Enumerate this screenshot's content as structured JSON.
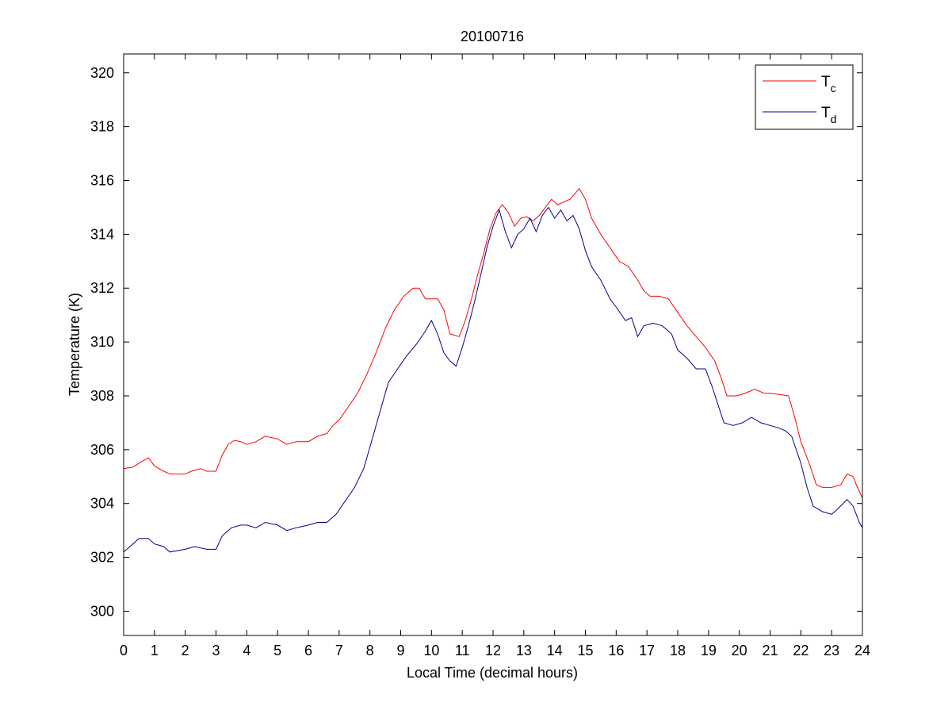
{
  "chart_data": {
    "type": "line",
    "title": "20100716",
    "xlabel": "Local Time (decimal hours)",
    "ylabel": "Temperature (K)",
    "xlim": [
      0,
      24
    ],
    "ylim": [
      299.1,
      320.7
    ],
    "xticks": [
      0,
      1,
      2,
      3,
      4,
      5,
      6,
      7,
      8,
      9,
      10,
      11,
      12,
      13,
      14,
      15,
      16,
      17,
      18,
      19,
      20,
      21,
      22,
      23,
      24
    ],
    "yticks": [
      300,
      302,
      304,
      306,
      308,
      310,
      312,
      314,
      316,
      318,
      320
    ],
    "grid": false,
    "legend_position": "top-right",
    "series": [
      {
        "name": "T",
        "subscript": "c",
        "color": "#ff0000",
        "points": [
          [
            0,
            305.3
          ],
          [
            0.3,
            305.35
          ],
          [
            0.5,
            305.5
          ],
          [
            0.8,
            305.7
          ],
          [
            1.0,
            305.4
          ],
          [
            1.3,
            305.2
          ],
          [
            1.5,
            305.1
          ],
          [
            2.0,
            305.1
          ],
          [
            2.2,
            305.2
          ],
          [
            2.5,
            305.3
          ],
          [
            2.7,
            305.2
          ],
          [
            3.0,
            305.2
          ],
          [
            3.2,
            305.8
          ],
          [
            3.4,
            306.2
          ],
          [
            3.6,
            306.35
          ],
          [
            3.8,
            306.3
          ],
          [
            4.0,
            306.2
          ],
          [
            4.3,
            306.3
          ],
          [
            4.6,
            306.5
          ],
          [
            5.0,
            306.4
          ],
          [
            5.3,
            306.2
          ],
          [
            5.6,
            306.3
          ],
          [
            6.0,
            306.3
          ],
          [
            6.3,
            306.5
          ],
          [
            6.6,
            306.6
          ],
          [
            6.8,
            306.9
          ],
          [
            7.0,
            307.1
          ],
          [
            7.3,
            307.6
          ],
          [
            7.6,
            308.1
          ],
          [
            7.9,
            308.8
          ],
          [
            8.2,
            309.6
          ],
          [
            8.5,
            310.5
          ],
          [
            8.8,
            311.2
          ],
          [
            9.1,
            311.7
          ],
          [
            9.4,
            312.0
          ],
          [
            9.6,
            312.0
          ],
          [
            9.8,
            311.6
          ],
          [
            10.0,
            311.6
          ],
          [
            10.2,
            311.6
          ],
          [
            10.4,
            311.2
          ],
          [
            10.6,
            310.3
          ],
          [
            10.9,
            310.2
          ],
          [
            11.1,
            310.8
          ],
          [
            11.3,
            311.6
          ],
          [
            11.5,
            312.5
          ],
          [
            11.7,
            313.3
          ],
          [
            11.9,
            314.2
          ],
          [
            12.1,
            314.8
          ],
          [
            12.3,
            315.1
          ],
          [
            12.5,
            314.8
          ],
          [
            12.7,
            314.3
          ],
          [
            12.9,
            314.6
          ],
          [
            13.1,
            314.65
          ],
          [
            13.3,
            314.5
          ],
          [
            13.5,
            314.7
          ],
          [
            13.7,
            315.0
          ],
          [
            13.9,
            315.3
          ],
          [
            14.1,
            315.1
          ],
          [
            14.3,
            315.2
          ],
          [
            14.5,
            315.3
          ],
          [
            14.8,
            315.7
          ],
          [
            15.0,
            315.3
          ],
          [
            15.2,
            314.6
          ],
          [
            15.5,
            314.0
          ],
          [
            15.8,
            313.5
          ],
          [
            16.1,
            313.0
          ],
          [
            16.4,
            312.8
          ],
          [
            16.7,
            312.3
          ],
          [
            16.9,
            311.9
          ],
          [
            17.1,
            311.7
          ],
          [
            17.4,
            311.7
          ],
          [
            17.7,
            311.6
          ],
          [
            18.0,
            311.1
          ],
          [
            18.3,
            310.6
          ],
          [
            18.6,
            310.2
          ],
          [
            18.9,
            309.8
          ],
          [
            19.2,
            309.3
          ],
          [
            19.4,
            308.7
          ],
          [
            19.6,
            308.0
          ],
          [
            19.9,
            308.0
          ],
          [
            20.2,
            308.1
          ],
          [
            20.5,
            308.25
          ],
          [
            20.8,
            308.1
          ],
          [
            21.0,
            308.1
          ],
          [
            21.3,
            308.05
          ],
          [
            21.6,
            308.0
          ],
          [
            21.8,
            307.2
          ],
          [
            22.0,
            306.3
          ],
          [
            22.3,
            305.4
          ],
          [
            22.5,
            304.7
          ],
          [
            22.7,
            304.6
          ],
          [
            23.0,
            304.6
          ],
          [
            23.3,
            304.7
          ],
          [
            23.5,
            305.1
          ],
          [
            23.7,
            305.0
          ],
          [
            23.8,
            304.7
          ],
          [
            24.0,
            304.2
          ]
        ]
      },
      {
        "name": "T",
        "subscript": "d",
        "color": "#00008b",
        "points": [
          [
            0,
            302.2
          ],
          [
            0.3,
            302.5
          ],
          [
            0.5,
            302.7
          ],
          [
            0.8,
            302.7
          ],
          [
            1.0,
            302.5
          ],
          [
            1.3,
            302.4
          ],
          [
            1.5,
            302.2
          ],
          [
            2.0,
            302.3
          ],
          [
            2.3,
            302.4
          ],
          [
            2.7,
            302.3
          ],
          [
            3.0,
            302.3
          ],
          [
            3.2,
            302.8
          ],
          [
            3.5,
            303.1
          ],
          [
            3.8,
            303.2
          ],
          [
            4.0,
            303.2
          ],
          [
            4.3,
            303.1
          ],
          [
            4.6,
            303.3
          ],
          [
            5.0,
            303.2
          ],
          [
            5.3,
            303.0
          ],
          [
            5.6,
            303.1
          ],
          [
            6.0,
            303.2
          ],
          [
            6.3,
            303.3
          ],
          [
            6.6,
            303.3
          ],
          [
            6.9,
            303.6
          ],
          [
            7.2,
            304.1
          ],
          [
            7.5,
            304.6
          ],
          [
            7.8,
            305.3
          ],
          [
            8.0,
            306.1
          ],
          [
            8.3,
            307.3
          ],
          [
            8.6,
            308.5
          ],
          [
            8.9,
            309.0
          ],
          [
            9.2,
            309.5
          ],
          [
            9.5,
            309.9
          ],
          [
            9.8,
            310.4
          ],
          [
            10.0,
            310.8
          ],
          [
            10.2,
            310.3
          ],
          [
            10.4,
            309.6
          ],
          [
            10.6,
            309.3
          ],
          [
            10.8,
            309.1
          ],
          [
            11.0,
            309.8
          ],
          [
            11.2,
            310.6
          ],
          [
            11.4,
            311.5
          ],
          [
            11.6,
            312.5
          ],
          [
            11.8,
            313.5
          ],
          [
            12.0,
            314.3
          ],
          [
            12.2,
            314.9
          ],
          [
            12.4,
            314.1
          ],
          [
            12.6,
            313.5
          ],
          [
            12.8,
            314.0
          ],
          [
            13.0,
            314.2
          ],
          [
            13.2,
            314.6
          ],
          [
            13.4,
            314.1
          ],
          [
            13.6,
            314.7
          ],
          [
            13.8,
            315.0
          ],
          [
            14.0,
            314.6
          ],
          [
            14.2,
            314.9
          ],
          [
            14.4,
            314.5
          ],
          [
            14.6,
            314.7
          ],
          [
            14.8,
            314.2
          ],
          [
            15.0,
            313.4
          ],
          [
            15.2,
            312.8
          ],
          [
            15.5,
            312.3
          ],
          [
            15.8,
            311.6
          ],
          [
            16.0,
            311.3
          ],
          [
            16.3,
            310.8
          ],
          [
            16.5,
            310.9
          ],
          [
            16.7,
            310.2
          ],
          [
            16.9,
            310.6
          ],
          [
            17.2,
            310.7
          ],
          [
            17.5,
            310.6
          ],
          [
            17.8,
            310.3
          ],
          [
            18.0,
            309.7
          ],
          [
            18.3,
            309.4
          ],
          [
            18.6,
            309.0
          ],
          [
            18.9,
            309.0
          ],
          [
            19.1,
            308.4
          ],
          [
            19.3,
            307.7
          ],
          [
            19.5,
            307.0
          ],
          [
            19.8,
            306.9
          ],
          [
            20.1,
            307.0
          ],
          [
            20.4,
            307.2
          ],
          [
            20.7,
            307.0
          ],
          [
            21.0,
            306.9
          ],
          [
            21.3,
            306.8
          ],
          [
            21.5,
            306.7
          ],
          [
            21.7,
            306.5
          ],
          [
            22.0,
            305.5
          ],
          [
            22.2,
            304.6
          ],
          [
            22.4,
            303.9
          ],
          [
            22.7,
            303.7
          ],
          [
            23.0,
            303.6
          ],
          [
            23.2,
            303.8
          ],
          [
            23.5,
            304.15
          ],
          [
            23.7,
            303.9
          ],
          [
            23.9,
            303.3
          ],
          [
            24.0,
            303.1
          ]
        ]
      }
    ]
  }
}
